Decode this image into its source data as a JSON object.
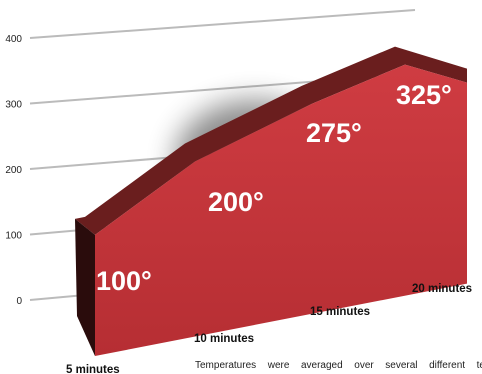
{
  "chart_data": {
    "type": "area",
    "title": "",
    "xlabel": "",
    "ylabel": "",
    "categories": [
      "5 minutes",
      "10 minutes",
      "15 minutes",
      "20 minutes"
    ],
    "values": [
      100,
      200,
      275,
      325
    ],
    "data_labels": [
      "100°",
      "200°",
      "275°",
      "325°"
    ],
    "y_ticks": [
      0,
      100,
      200,
      300,
      400
    ],
    "ylim": [
      0,
      400
    ],
    "grid": true,
    "legend": "none",
    "style": "3D perspective extruded area",
    "colors": {
      "front": "#c4353a",
      "top": "#6a1e1e",
      "side": "#2a0c0c",
      "grid": "#bbbbbb"
    }
  },
  "caption": "Temperatures were averaged over several different te"
}
